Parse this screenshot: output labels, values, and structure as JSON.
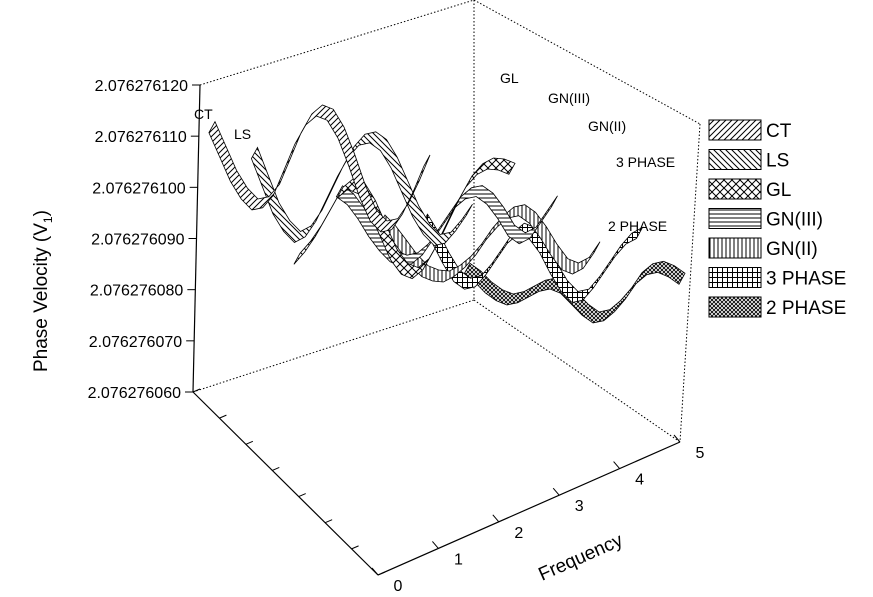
{
  "chart_data": {
    "type": "ribbon-3d",
    "ylabel": "Phase Velocity (V",
    "ylabel_sub": "1",
    "ylabel_close": ")",
    "xlabel": "Frequency",
    "y_ticks": [
      "2.076276060",
      "2.076276070",
      "2.076276080",
      "2.076276090",
      "2.076276100",
      "2.076276110",
      "2.076276120"
    ],
    "ylim": [
      2.07627606,
      2.07627612
    ],
    "x_ticks": [
      "0",
      "1",
      "2",
      "3",
      "4",
      "5"
    ],
    "xlim": [
      0,
      5
    ],
    "grid": false,
    "legend_position": "right",
    "x": [
      0,
      0.25,
      0.5,
      0.75,
      1,
      1.25,
      1.5,
      1.75,
      2,
      2.25,
      2.5,
      2.75,
      3,
      3.25,
      3.5,
      3.75,
      4,
      4.25,
      4.5,
      4.75,
      5
    ],
    "series": [
      {
        "name": "CT",
        "pattern": "hatch-diag-right",
        "values": [
          2.076276112,
          2.076276105,
          2.076276098,
          2.076276093,
          2.07627609,
          2.076276091,
          2.076276095,
          2.076276103,
          2.076276111,
          2.076276117,
          2.07627612,
          2.076276119,
          2.076276114,
          2.076276106,
          2.076276097,
          2.07627609,
          2.076276087,
          2.076276088,
          2.076276093,
          2.0762761,
          2.076276108
        ]
      },
      {
        "name": "LS",
        "pattern": "hatch-diag-left",
        "values": [
          2.076276107,
          2.076276099,
          2.076276091,
          2.076276086,
          2.076276083,
          2.076276085,
          2.07627609,
          2.076276097,
          2.076276104,
          2.07627611,
          2.076276114,
          2.076276115,
          2.076276113,
          2.076276108,
          2.076276101,
          2.076276094,
          2.076276089,
          2.076276086,
          2.076276087,
          2.076276091,
          2.076276096
        ]
      },
      {
        "name": "GL",
        "pattern": "crosshatch-diag",
        "values": [
          2.076276078,
          2.076276082,
          2.076276087,
          2.076276093,
          2.076276099,
          2.076276102,
          2.076276101,
          2.076276096,
          2.076276089,
          2.076276082,
          2.076276078,
          2.076276077,
          2.07627608,
          2.076276086,
          2.076276093,
          2.0762761,
          2.076276106,
          2.07627611,
          2.076276112,
          2.076276112,
          2.076276111
        ]
      },
      {
        "name": "GN(III)",
        "pattern": "horizontal-lines",
        "values": [
          2.076276101,
          2.076276099,
          2.076276095,
          2.07627609,
          2.076276086,
          2.076276083,
          2.076276082,
          2.076276083,
          2.076276086,
          2.076276091,
          2.076276096,
          2.076276101,
          2.076276104,
          2.076276105,
          2.076276103,
          2.076276099,
          2.076276094,
          2.076276092,
          2.076276094,
          2.076276099,
          2.076276104
        ]
      },
      {
        "name": "GN(II)",
        "pattern": "vertical-lines",
        "values": [
          2.076276095,
          2.076276092,
          2.076276088,
          2.076276084,
          2.076276081,
          2.07627608,
          2.07627608,
          2.076276082,
          2.076276085,
          2.076276089,
          2.076276094,
          2.076276098,
          2.076276101,
          2.076276102,
          2.0762761,
          2.076276096,
          2.076276091,
          2.076276087,
          2.076276086,
          2.076276088,
          2.076276093
        ]
      },
      {
        "name": "3 PHASE",
        "pattern": "grid",
        "values": [
          2.076276098,
          2.076276093,
          2.076276087,
          2.076276082,
          2.07627608,
          2.076276081,
          2.076276085,
          2.07627609,
          2.076276095,
          2.076276098,
          2.076276097,
          2.076276093,
          2.076276087,
          2.076276082,
          2.076276079,
          2.07627608,
          2.076276084,
          2.076276089,
          2.076276094,
          2.076276098,
          2.0762761
        ]
      },
      {
        "name": "2 PHASE",
        "pattern": "fine-crosshatch",
        "values": [
          2.076276086,
          2.076276084,
          2.076276081,
          2.076276079,
          2.076276078,
          2.076276079,
          2.076276081,
          2.076276083,
          2.076276084,
          2.076276083,
          2.07627608,
          2.076276077,
          2.076276075,
          2.076276076,
          2.076276079,
          2.076276083,
          2.076276088,
          2.076276091,
          2.076276092,
          2.076276091,
          2.076276089
        ]
      }
    ]
  }
}
